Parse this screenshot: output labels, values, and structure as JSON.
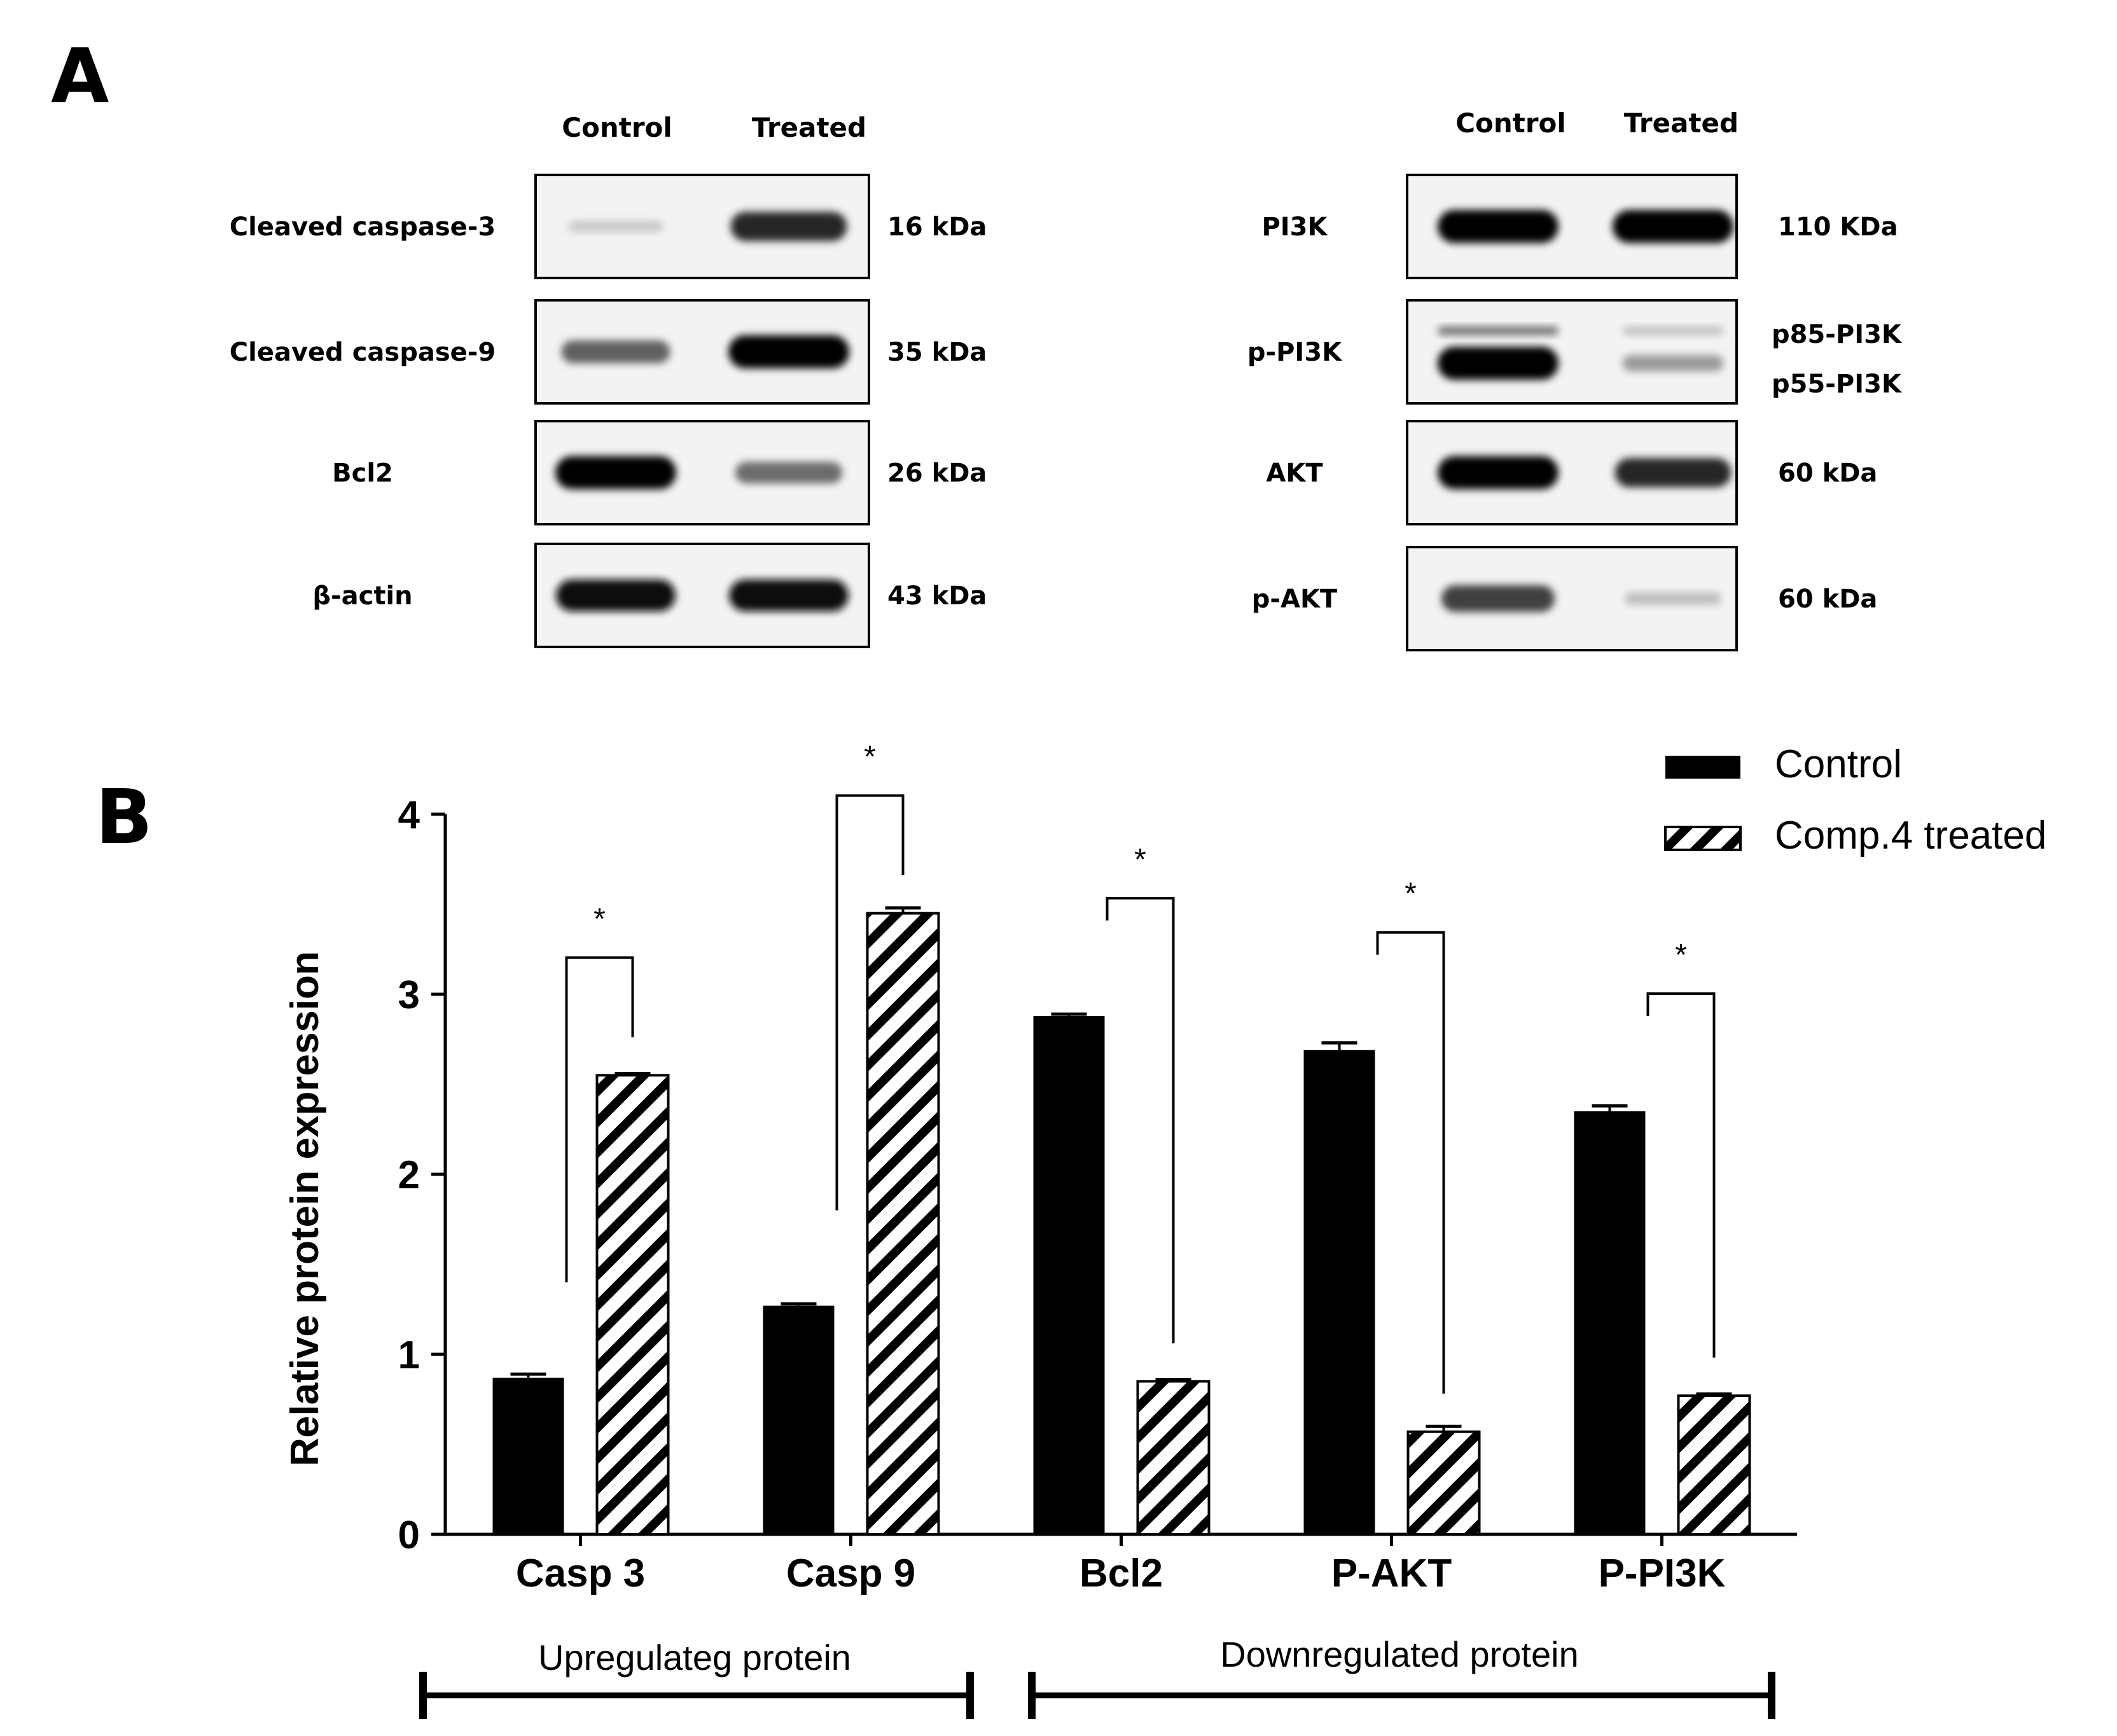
{
  "panel_a": {
    "label": "A",
    "left_blot": {
      "lane_labels": [
        "Control",
        "Treated"
      ],
      "rows": [
        {
          "protein": "Cleaved caspase-3",
          "kda": "16 kDa",
          "control_band": 0.15,
          "treated_band": 0.85
        },
        {
          "protein": "Cleaved caspase-9",
          "kda": "35 kDa",
          "control_band": 0.6,
          "treated_band": 1.0
        },
        {
          "protein": "Bcl2",
          "kda": "26 kDa",
          "control_band": 1.0,
          "treated_band": 0.55
        },
        {
          "protein": "β-actin",
          "kda": "43 kDa",
          "control_band": 0.95,
          "treated_band": 0.95
        }
      ]
    },
    "right_blot": {
      "lane_labels": [
        "Control",
        "Treated"
      ],
      "rows": [
        {
          "protein": "PI3K",
          "kda": "110 KDa",
          "control_band": 1.0,
          "treated_band": 1.0
        },
        {
          "protein": "p-PI3K",
          "kda": "",
          "sub_kda": [
            "p85-PI3K",
            "p55-PI3K"
          ],
          "control_band": 1.0,
          "treated_band": 0.35
        },
        {
          "protein": "AKT",
          "kda": "60 kDa",
          "control_band": 1.0,
          "treated_band": 0.85
        },
        {
          "protein": "p-AKT",
          "kda": "60 kDa",
          "control_band": 0.75,
          "treated_band": 0.2
        }
      ]
    }
  },
  "panel_b": {
    "label": "B",
    "group_labels": [
      "Upregulateg protein",
      "Downregulated protein"
    ],
    "significance_marker": "*",
    "colors": {
      "control": "#000000",
      "treated_stripe": "#000000",
      "treated_bg": "#ffffff"
    }
  },
  "chart_data": {
    "type": "bar",
    "categories": [
      "Casp 3",
      "Casp 9",
      "Bcl2",
      "P-AKT",
      "P-PI3K"
    ],
    "series": [
      {
        "name": "Control",
        "values": [
          0.87,
          1.27,
          2.88,
          2.69,
          2.35
        ],
        "errors": [
          0.02,
          0.01,
          0.01,
          0.04,
          0.03
        ]
      },
      {
        "name": "Comp.4 treated",
        "values": [
          2.55,
          3.45,
          0.85,
          0.57,
          0.77
        ],
        "errors": [
          0.01,
          0.03,
          0.01,
          0.03,
          0.01
        ]
      }
    ],
    "ylabel": "Relative protein expression",
    "xlabel": "",
    "yticks": [
      0,
      1,
      2,
      3,
      4
    ],
    "ylim": [
      0,
      4
    ],
    "legend_placement": "top-right",
    "grid": false
  }
}
